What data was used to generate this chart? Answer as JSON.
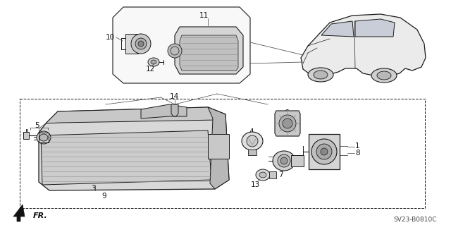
{
  "bg_color": "#ffffff",
  "diagram_code": "SV23-B0810C",
  "fr_label": "FR.",
  "line_color": "#1a1a1a",
  "gray_fill": "#e0e0e0",
  "light_fill": "#f0f0f0",
  "inset_fill": "#f8f8f8"
}
